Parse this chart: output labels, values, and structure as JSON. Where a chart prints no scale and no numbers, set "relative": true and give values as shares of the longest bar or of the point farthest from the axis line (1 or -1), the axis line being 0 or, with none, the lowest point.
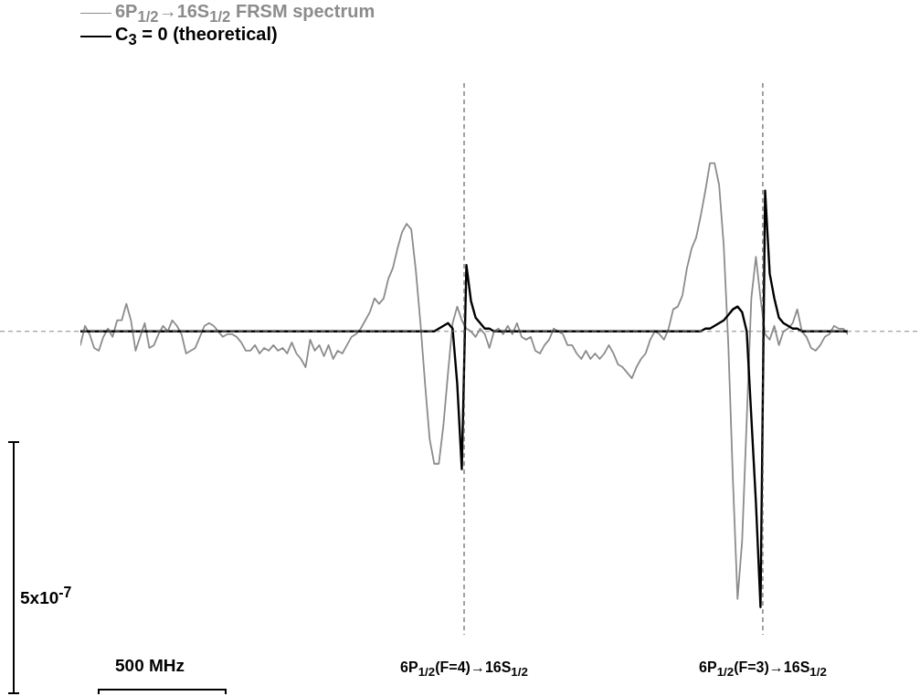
{
  "chart_data": {
    "type": "line",
    "relative": true,
    "marker": "none",
    "line_style": "solid",
    "legend": "top left",
    "tick_labels": false,
    "categories": [
      null,
      null,
      null,
      null,
      null,
      null,
      null,
      null,
      null,
      null,
      null,
      null,
      null,
      null,
      null,
      null,
      null,
      null,
      null,
      null,
      null,
      null,
      null,
      null,
      null,
      null,
      null,
      null,
      null,
      null,
      null,
      null,
      null,
      null,
      null,
      null,
      null,
      null,
      null,
      null,
      null,
      null,
      null,
      null,
      null,
      null,
      null,
      null,
      null,
      null,
      null,
      null,
      null,
      null,
      null,
      null,
      null,
      null,
      null,
      null,
      null,
      null,
      null,
      null,
      null,
      null,
      null,
      null,
      null,
      null,
      null,
      null,
      null,
      null,
      null,
      null,
      null,
      null,
      null,
      null,
      null,
      null,
      null,
      null,
      null,
      null,
      null,
      null,
      null,
      null,
      null,
      null,
      null,
      null,
      null,
      null,
      null,
      null,
      null,
      null,
      null,
      null,
      null,
      null,
      null,
      null,
      null,
      null,
      null,
      null,
      null,
      null,
      null,
      null,
      null,
      null,
      null,
      null,
      null,
      null,
      null,
      null,
      null,
      null,
      null,
      null,
      null,
      null,
      null,
      null,
      null,
      null,
      null,
      null,
      null,
      null,
      null,
      null,
      null,
      null,
      null,
      null,
      null,
      null,
      null,
      null,
      null,
      null,
      null,
      null,
      null,
      null,
      null,
      null,
      null,
      null,
      null,
      null,
      null,
      null,
      null,
      null,
      null,
      null,
      null,
      null,
      null,
      null
    ],
    "series": [
      {
        "name": "6P$_{1/2}$→16S$_{1/2}$ FRSM spectrum",
        "color": "#8c8c8c",
        "values": [
          -0.05,
          0.02,
          -0.01,
          -0.06,
          -0.07,
          -0.02,
          0.01,
          -0.02,
          0.04,
          0.04,
          0.1,
          0.04,
          -0.07,
          -0.02,
          0.03,
          -0.06,
          -0.05,
          -0.01,
          0.02,
          0.0,
          0.04,
          0.02,
          -0.01,
          -0.08,
          -0.07,
          -0.06,
          -0.02,
          0.02,
          0.03,
          0.02,
          0.0,
          -0.02,
          -0.01,
          -0.01,
          -0.02,
          -0.04,
          -0.07,
          -0.07,
          -0.05,
          -0.08,
          -0.06,
          -0.07,
          -0.05,
          -0.07,
          -0.06,
          -0.08,
          -0.04,
          -0.08,
          -0.1,
          -0.13,
          -0.03,
          -0.07,
          -0.05,
          -0.09,
          -0.05,
          -0.1,
          -0.07,
          -0.08,
          -0.05,
          -0.02,
          -0.01,
          0.01,
          0.04,
          0.07,
          0.12,
          0.1,
          0.12,
          0.19,
          0.23,
          0.3,
          0.36,
          0.39,
          0.37,
          0.22,
          0.03,
          -0.19,
          -0.39,
          -0.48,
          -0.48,
          -0.34,
          -0.15,
          0.03,
          0.09,
          0.04,
          0.01,
          0.0,
          -0.02,
          0.01,
          -0.01,
          -0.06,
          0.0,
          0.01,
          -0.01,
          0.02,
          -0.01,
          0.03,
          -0.02,
          -0.03,
          -0.02,
          -0.07,
          -0.08,
          -0.05,
          -0.03,
          0.01,
          0.0,
          -0.01,
          -0.05,
          -0.05,
          -0.08,
          -0.1,
          -0.07,
          -0.1,
          -0.08,
          -0.1,
          -0.08,
          -0.05,
          -0.08,
          -0.12,
          -0.13,
          -0.15,
          -0.17,
          -0.13,
          -0.1,
          -0.08,
          -0.03,
          0.0,
          -0.01,
          -0.03,
          0.01,
          0.08,
          0.09,
          0.13,
          0.23,
          0.3,
          0.34,
          0.42,
          0.51,
          0.61,
          0.61,
          0.53,
          0.31,
          -0.05,
          -0.54,
          -0.97,
          -0.76,
          -0.32,
          0.12,
          0.27,
          0.12,
          -0.01,
          -0.03,
          0.02,
          -0.05,
          0.0,
          0.01,
          0.03,
          0.08,
          0.0,
          -0.02,
          -0.06,
          -0.07,
          -0.05,
          -0.02,
          -0.01,
          0.02,
          0.01,
          0.01,
          -0.01
        ]
      },
      {
        "name": "C$_{3}$ = 0 (theoretical)",
        "color": "#000000",
        "values": [
          0,
          0,
          0,
          0,
          0,
          0,
          0,
          0,
          0,
          0,
          0,
          0,
          0,
          0,
          0,
          0,
          0,
          0,
          0,
          0,
          0,
          0,
          0,
          0,
          0,
          0,
          0,
          0,
          0,
          0,
          0,
          0,
          0,
          0,
          0,
          0,
          0,
          0,
          0,
          0,
          0,
          0,
          0,
          0,
          0,
          0,
          0,
          0,
          0,
          0,
          0,
          0,
          0,
          0,
          0,
          0,
          0,
          0,
          0,
          0,
          0,
          0,
          0,
          0,
          0,
          0,
          0,
          0,
          0,
          0,
          0,
          0,
          0,
          0,
          0,
          0,
          0,
          0,
          0.01,
          0.02,
          0.03,
          0.01,
          -0.19,
          -0.5,
          0.24,
          0.11,
          0.05,
          0.03,
          0.01,
          0.01,
          0,
          0,
          0,
          0,
          0,
          0,
          0,
          0,
          0,
          0,
          0,
          0,
          0,
          0,
          0,
          0,
          0,
          0,
          0,
          0,
          0,
          0,
          0,
          0,
          0,
          0,
          0,
          0,
          0,
          0,
          0,
          0,
          0,
          0,
          0,
          0,
          0,
          0,
          0,
          0,
          0,
          0,
          0,
          0,
          0,
          0,
          0.01,
          0.01,
          0.02,
          0.03,
          0.04,
          0.06,
          0.08,
          0.09,
          0.07,
          0.0,
          -0.31,
          -0.62,
          -1.0,
          0.51,
          0.21,
          0.12,
          0.05,
          0.03,
          0.02,
          0.01,
          0.01,
          0,
          0,
          0,
          0,
          0,
          0,
          0,
          0,
          0,
          0,
          0
        ]
      }
    ],
    "ref_lines": [
      {
        "axis": "y",
        "value": 0,
        "color": "#888888",
        "line_style": "dashed"
      }
    ],
    "annotations": [
      "5x10$^{-7}$",
      "500 MHz",
      "6P$_{1/2}$(F=4)→16S$_{1/2}$",
      "6P$_{1/2}$(F=3)→16S$_{1/2}$"
    ]
  }
}
